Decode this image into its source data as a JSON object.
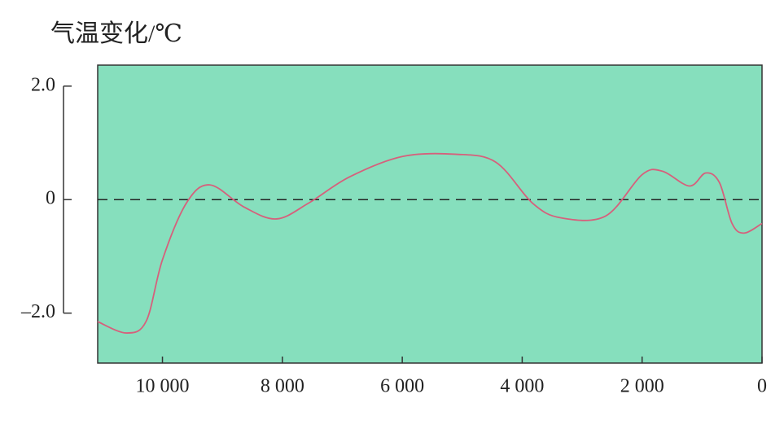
{
  "chart_data": {
    "type": "line",
    "title": "气温变化/℃",
    "x": [
      11080,
      10600,
      10270,
      10000,
      9600,
      9210,
      8640,
      8100,
      7560,
      6880,
      6000,
      5120,
      4440,
      3830,
      3360,
      2610,
      2000,
      1660,
      1210,
      940,
      710,
      500,
      300,
      0
    ],
    "series": [
      {
        "color": "#d6607c",
        "values": [
          -2.15,
          -2.35,
          -2.14,
          -1.06,
          -0.06,
          0.26,
          -0.13,
          -0.34,
          -0.06,
          0.4,
          0.76,
          0.8,
          0.66,
          -0.06,
          -0.32,
          -0.29,
          0.44,
          0.5,
          0.24,
          0.47,
          0.3,
          -0.42,
          -0.59,
          -0.42
        ]
      }
    ],
    "xlim": [
      11080,
      0
    ],
    "xticks": [
      {
        "value": 10000,
        "label": "10 000"
      },
      {
        "value": 8000,
        "label": "8 000"
      },
      {
        "value": 6000,
        "label": "6 000"
      },
      {
        "value": 4000,
        "label": "4 000"
      },
      {
        "value": 2000,
        "label": "2 000"
      },
      0
    ],
    "ylim": [
      -2.88,
      2.37
    ],
    "yticks": [
      {
        "value": 2,
        "label": "2.0"
      },
      0,
      {
        "value": -2,
        "label": "–2.0"
      }
    ],
    "background": "#86dfbd"
  }
}
